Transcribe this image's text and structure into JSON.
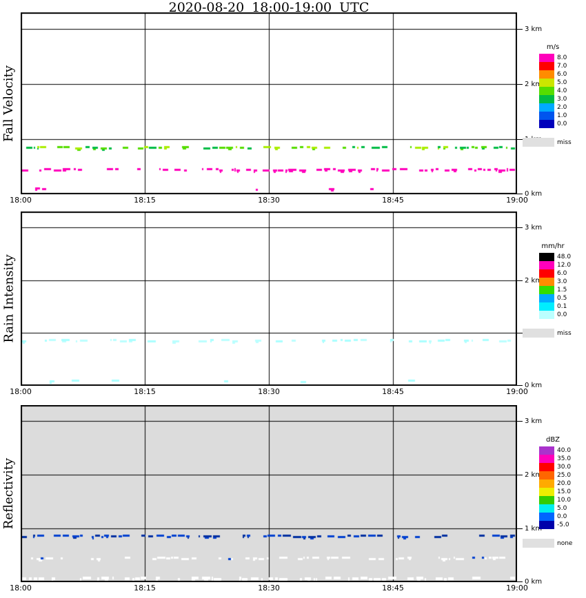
{
  "title": "2020-08-20  18:00-19:00 UTC",
  "figure_bg": "#ffffff",
  "chart_data": [
    {
      "type": "heatmap",
      "panel": "fall_velocity",
      "ylabel": "Fall Velocity",
      "x_ticks": [
        "18:00",
        "18:15",
        "18:30",
        "18:45",
        "19:00"
      ],
      "y_ticks": [
        {
          "km": 3,
          "label": "3 km"
        },
        {
          "km": 2,
          "label": "2 km"
        },
        {
          "km": 1,
          "label": "1 km"
        },
        {
          "km": 0,
          "label": "0 km"
        }
      ],
      "y_max_km": 3.3,
      "grid_km": [
        1,
        2,
        3
      ],
      "background": "#ffffff",
      "colorbar_unit": "m/s",
      "colorbar": [
        {
          "label": "8.0",
          "color": "#ff00bb"
        },
        {
          "label": "7.0",
          "color": "#ff0000"
        },
        {
          "label": "6.0",
          "color": "#ff8c00"
        },
        {
          "label": "5.0",
          "color": "#cce600"
        },
        {
          "label": "4.0",
          "color": "#55dd00"
        },
        {
          "label": "3.0",
          "color": "#00bb44"
        },
        {
          "label": "2.0",
          "color": "#00aaff"
        },
        {
          "label": "1.0",
          "color": "#0055ee"
        },
        {
          "label": "0.0",
          "color": "#0000bb"
        }
      ],
      "no_data": {
        "label": "miss",
        "color": "#e0e0e0"
      },
      "bands": [
        {
          "height_km": 0.85,
          "approx_value": "3-5 m/s",
          "colors": [
            "#55dd00",
            "#aaee00",
            "#00bb44"
          ],
          "density": 0.72,
          "seed": 101
        },
        {
          "height_km": 0.44,
          "approx_value": "~8 m/s",
          "colors": [
            "#ff00bb"
          ],
          "density": 0.68,
          "seed": 102
        },
        {
          "height_km": 0.1,
          "approx_value": "~8 m/s",
          "colors": [
            "#ff00bb"
          ],
          "density": 0.08,
          "seed": 103
        }
      ]
    },
    {
      "type": "heatmap",
      "panel": "rain_intensity",
      "ylabel": "Rain Intensity",
      "x_ticks": [
        "18:00",
        "18:15",
        "18:30",
        "18:45",
        "19:00"
      ],
      "y_ticks": [
        {
          "km": 3,
          "label": "3 km"
        },
        {
          "km": 2,
          "label": "2 km"
        },
        {
          "km": 1,
          "label": "1 km"
        },
        {
          "km": 0,
          "label": "0 km"
        }
      ],
      "y_max_km": 3.3,
      "grid_km": [
        1,
        2,
        3
      ],
      "background": "#ffffff",
      "colorbar_unit": "mm/hr",
      "colorbar": [
        {
          "label": "48.0",
          "color": "#000000"
        },
        {
          "label": "12.0",
          "color": "#ff00bb"
        },
        {
          "label": "6.0",
          "color": "#ff0000"
        },
        {
          "label": "3.0",
          "color": "#ff8c00"
        },
        {
          "label": "1.5",
          "color": "#33dd00"
        },
        {
          "label": "0.5",
          "color": "#00aaff"
        },
        {
          "label": "0.1",
          "color": "#00eeff"
        },
        {
          "label": "0.0",
          "color": "#bbffff"
        }
      ],
      "no_data": {
        "label": "miss",
        "color": "#e0e0e0"
      },
      "bands": [
        {
          "height_km": 0.85,
          "approx_value": "0.0-0.1 mm/hr",
          "colors": [
            "#aaffff",
            "#bbffff"
          ],
          "density": 0.55,
          "seed": 201
        },
        {
          "height_km": 0.08,
          "approx_value": "0.0-0.1 mm/hr",
          "colors": [
            "#aaffff"
          ],
          "density": 0.16,
          "seed": 202
        }
      ]
    },
    {
      "type": "heatmap",
      "panel": "reflectivity",
      "ylabel": "Reflectivity",
      "x_ticks": [
        "18:00",
        "18:15",
        "18:30",
        "18:45",
        "19:00"
      ],
      "y_ticks": [
        {
          "km": 3,
          "label": "3 km"
        },
        {
          "km": 2,
          "label": "2 km"
        },
        {
          "km": 1,
          "label": "1 km"
        },
        {
          "km": 0,
          "label": "0 km"
        }
      ],
      "y_max_km": 3.3,
      "grid_km": [
        1,
        2,
        3
      ],
      "background": "#dcdcdc",
      "colorbar_unit": "dBZ",
      "colorbar": [
        {
          "label": "40.0",
          "color": "#aa33cc"
        },
        {
          "label": "35.0",
          "color": "#ff00bb"
        },
        {
          "label": "30.0",
          "color": "#ff0000"
        },
        {
          "label": "25.0",
          "color": "#ff6600"
        },
        {
          "label": "20.0",
          "color": "#ffaa00"
        },
        {
          "label": "15.0",
          "color": "#eeee00"
        },
        {
          "label": "10.0",
          "color": "#33cc00"
        },
        {
          "label": "5.0",
          "color": "#00eeee"
        },
        {
          "label": "0.0",
          "color": "#0066ff"
        },
        {
          "label": "-5.0",
          "color": "#0000aa"
        }
      ],
      "no_data": {
        "label": "none",
        "color": "#e0e0e0"
      },
      "bands": [
        {
          "height_km": 0.85,
          "approx_value": "0-5 dBZ",
          "colors": [
            "#0040d0",
            "#002fa0"
          ],
          "density": 0.78,
          "seed": 301
        },
        {
          "height_km": 0.44,
          "approx_value": "below -5 dBZ",
          "colors": [
            "#ffffff"
          ],
          "density": 0.6,
          "seed": 302
        },
        {
          "height_km": 0.44,
          "approx_value": "0 dBZ isolated",
          "colors": [
            "#0040d0"
          ],
          "density": 0.02,
          "dot": true,
          "seed": 303
        },
        {
          "height_km": 0.06,
          "approx_value": "below -5 dBZ",
          "colors": [
            "#ffffff"
          ],
          "density": 0.7,
          "thick": 4,
          "seed": 304
        }
      ]
    }
  ]
}
